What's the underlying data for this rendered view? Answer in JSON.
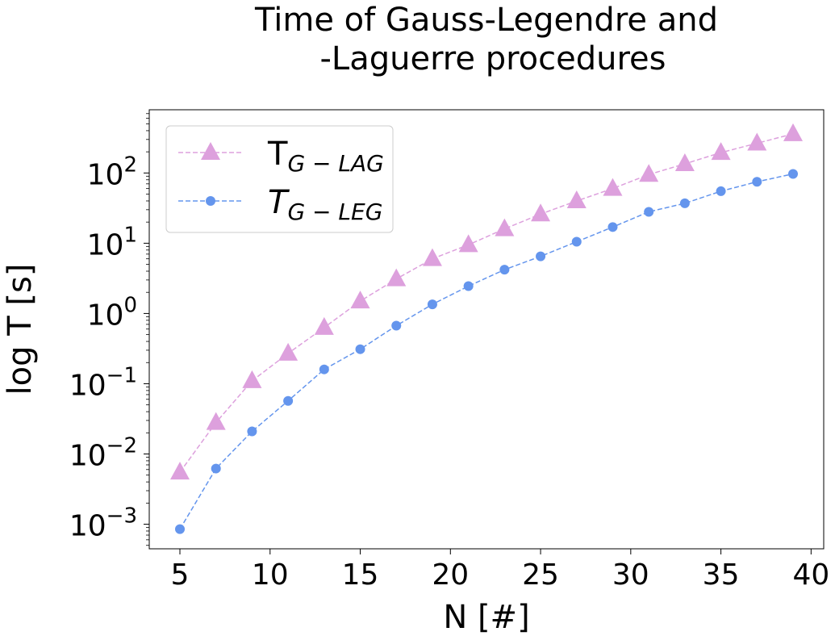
{
  "chart_data": {
    "type": "line",
    "title_lines": [
      "Time of Gauss-Legendre and",
      "-Laguerre procedures"
    ],
    "xlabel": "N [#]",
    "ylabel": "log T [s]",
    "yscale": "log",
    "xlim": [
      3.3,
      40.7
    ],
    "ylim_log10": [
      -3.35,
      2.9
    ],
    "xticks": [
      5,
      10,
      15,
      20,
      25,
      30,
      35,
      40
    ],
    "xtick_labels": [
      "5",
      "10",
      "15",
      "20",
      "25",
      "30",
      "35",
      "40"
    ],
    "yticks_exponent": [
      -3,
      -2,
      -1,
      0,
      1,
      2
    ],
    "ytick_base": "10",
    "ytick_exponent_labels": [
      "−3",
      "−2",
      "−1",
      "0",
      "1",
      "2"
    ],
    "legend_position": "upper-left",
    "x": [
      5,
      7,
      9,
      11,
      13,
      15,
      17,
      19,
      21,
      23,
      25,
      27,
      29,
      31,
      33,
      35,
      37,
      39
    ],
    "series": [
      {
        "name": "T",
        "name_subscript": "G − LAG",
        "color": "#dda0dd",
        "marker": "triangle",
        "values": [
          0.0055,
          0.028,
          0.11,
          0.27,
          0.63,
          1.5,
          3.1,
          6.0,
          9.5,
          16,
          26,
          40,
          60,
          95,
          135,
          195,
          265,
          360
        ]
      },
      {
        "name": "T",
        "name_subscript": "G − LEG",
        "color": "#6495ed",
        "marker": "circle",
        "values": [
          0.00085,
          0.0062,
          0.021,
          0.057,
          0.16,
          0.31,
          0.67,
          1.35,
          2.45,
          4.2,
          6.5,
          10.5,
          17,
          28,
          37,
          55,
          75,
          97
        ]
      }
    ]
  }
}
